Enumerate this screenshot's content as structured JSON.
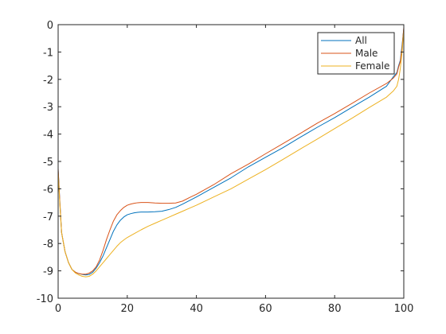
{
  "chart_data": {
    "type": "line",
    "title": "",
    "xlabel": "",
    "ylabel": "",
    "xlim": [
      0,
      100
    ],
    "ylim": [
      -10,
      0
    ],
    "xticks": [
      0,
      20,
      40,
      60,
      80,
      100
    ],
    "yticks": [
      0,
      -1,
      -2,
      -3,
      -4,
      -5,
      -6,
      -7,
      -8,
      -9,
      -10
    ],
    "xtick_labels": [
      "0",
      "20",
      "40",
      "60",
      "80",
      "100"
    ],
    "ytick_labels": [
      "0",
      "-1",
      "-2",
      "-3",
      "-4",
      "-5",
      "-6",
      "-7",
      "-8",
      "-9",
      "-10"
    ],
    "grid": false,
    "legend_position": "top-right",
    "series": [
      {
        "name": "All",
        "color": "#0072BD",
        "x": [
          0,
          0.5,
          1,
          2,
          3,
          4,
          5,
          6,
          7,
          8,
          9,
          10,
          11,
          12,
          13,
          14,
          15,
          16,
          17,
          18,
          19,
          20,
          21,
          22,
          23,
          24,
          25,
          26,
          28,
          30,
          32,
          34,
          36,
          38,
          40,
          45,
          50,
          55,
          60,
          65,
          70,
          75,
          80,
          85,
          90,
          95,
          97,
          98,
          98.5,
          99,
          99.5,
          100
        ],
        "y": [
          -5.3,
          -6.5,
          -7.6,
          -8.3,
          -8.7,
          -8.95,
          -9.05,
          -9.1,
          -9.13,
          -9.15,
          -9.13,
          -9.05,
          -8.9,
          -8.7,
          -8.45,
          -8.15,
          -7.85,
          -7.55,
          -7.32,
          -7.15,
          -7.03,
          -6.95,
          -6.91,
          -6.88,
          -6.86,
          -6.85,
          -6.85,
          -6.85,
          -6.84,
          -6.82,
          -6.76,
          -6.68,
          -6.56,
          -6.43,
          -6.3,
          -5.95,
          -5.6,
          -5.2,
          -4.85,
          -4.5,
          -4.12,
          -3.75,
          -3.4,
          -3.02,
          -2.65,
          -2.25,
          -1.9,
          -1.75,
          -1.5,
          -1.3,
          -0.75,
          -0.15
        ]
      },
      {
        "name": "Male",
        "color": "#D95319",
        "x": [
          0,
          0.5,
          1,
          2,
          3,
          4,
          5,
          6,
          7,
          8,
          9,
          10,
          11,
          12,
          13,
          14,
          15,
          16,
          17,
          18,
          19,
          20,
          21,
          22,
          23,
          24,
          25,
          26,
          28,
          30,
          32,
          34,
          36,
          38,
          40,
          45,
          50,
          55,
          60,
          65,
          70,
          75,
          80,
          85,
          90,
          95,
          97,
          98,
          98.5,
          99,
          99.5,
          100
        ],
        "y": [
          -5.25,
          -6.5,
          -7.6,
          -8.3,
          -8.7,
          -8.95,
          -9.05,
          -9.1,
          -9.12,
          -9.12,
          -9.08,
          -9.0,
          -8.85,
          -8.6,
          -8.25,
          -7.85,
          -7.5,
          -7.18,
          -6.95,
          -6.8,
          -6.68,
          -6.6,
          -6.56,
          -6.53,
          -6.51,
          -6.5,
          -6.5,
          -6.5,
          -6.52,
          -6.53,
          -6.53,
          -6.52,
          -6.45,
          -6.32,
          -6.2,
          -5.85,
          -5.45,
          -5.1,
          -4.72,
          -4.35,
          -3.98,
          -3.6,
          -3.25,
          -2.88,
          -2.5,
          -2.15,
          -1.95,
          -1.8,
          -1.55,
          -1.35,
          -0.85,
          -0.1
        ]
      },
      {
        "name": "Female",
        "color": "#EDB120",
        "x": [
          0,
          0.5,
          1,
          2,
          3,
          4,
          5,
          6,
          7,
          8,
          9,
          10,
          11,
          12,
          13,
          14,
          15,
          16,
          17,
          18,
          19,
          20,
          22,
          24,
          26,
          28,
          30,
          32,
          34,
          36,
          38,
          40,
          45,
          50,
          55,
          60,
          65,
          70,
          75,
          80,
          85,
          90,
          95,
          97,
          98,
          98.5,
          99,
          99.5,
          100
        ],
        "y": [
          -5.4,
          -6.6,
          -7.6,
          -8.3,
          -8.7,
          -8.95,
          -9.08,
          -9.15,
          -9.2,
          -9.22,
          -9.2,
          -9.12,
          -9.0,
          -8.85,
          -8.7,
          -8.55,
          -8.4,
          -8.25,
          -8.1,
          -7.97,
          -7.87,
          -7.78,
          -7.64,
          -7.5,
          -7.37,
          -7.26,
          -7.15,
          -7.04,
          -6.93,
          -6.82,
          -6.71,
          -6.6,
          -6.3,
          -6.0,
          -5.65,
          -5.3,
          -4.93,
          -4.55,
          -4.18,
          -3.8,
          -3.42,
          -3.03,
          -2.65,
          -2.42,
          -2.25,
          -2.0,
          -1.6,
          -1.0,
          -0.2
        ]
      }
    ]
  }
}
